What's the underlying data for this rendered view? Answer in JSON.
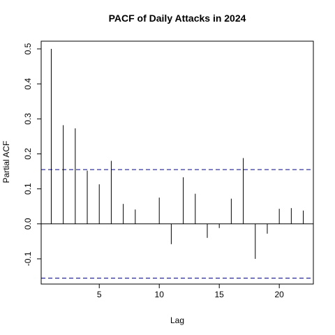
{
  "chart_data": {
    "type": "bar",
    "title": "PACF of Daily Attacks in 2024",
    "xlabel": "Lag",
    "ylabel": "Partial ACF",
    "xlim": [
      0.16,
      22.84
    ],
    "ylim": [
      -0.172,
      0.522
    ],
    "x_ticks": [
      5,
      10,
      15,
      20
    ],
    "y_ticks": [
      -0.1,
      0.0,
      0.1,
      0.2,
      0.3,
      0.4,
      0.5
    ],
    "y_tick_labels": [
      "-0.1",
      "0.0",
      "0.1",
      "0.2",
      "0.3",
      "0.4",
      "0.5"
    ],
    "confidence_bound": 0.155,
    "confidence_line_color": "#00008B",
    "grid": false,
    "lags": [
      1,
      2,
      3,
      4,
      5,
      6,
      7,
      8,
      9,
      10,
      11,
      12,
      13,
      14,
      15,
      16,
      17,
      18,
      19,
      20,
      21,
      22
    ],
    "values": [
      0.5,
      0.282,
      0.273,
      0.152,
      0.113,
      0.18,
      0.057,
      0.041,
      0.0,
      0.075,
      -0.058,
      0.133,
      0.086,
      -0.04,
      -0.012,
      0.072,
      0.188,
      -0.1,
      -0.028,
      0.043,
      0.045,
      0.038
    ]
  }
}
